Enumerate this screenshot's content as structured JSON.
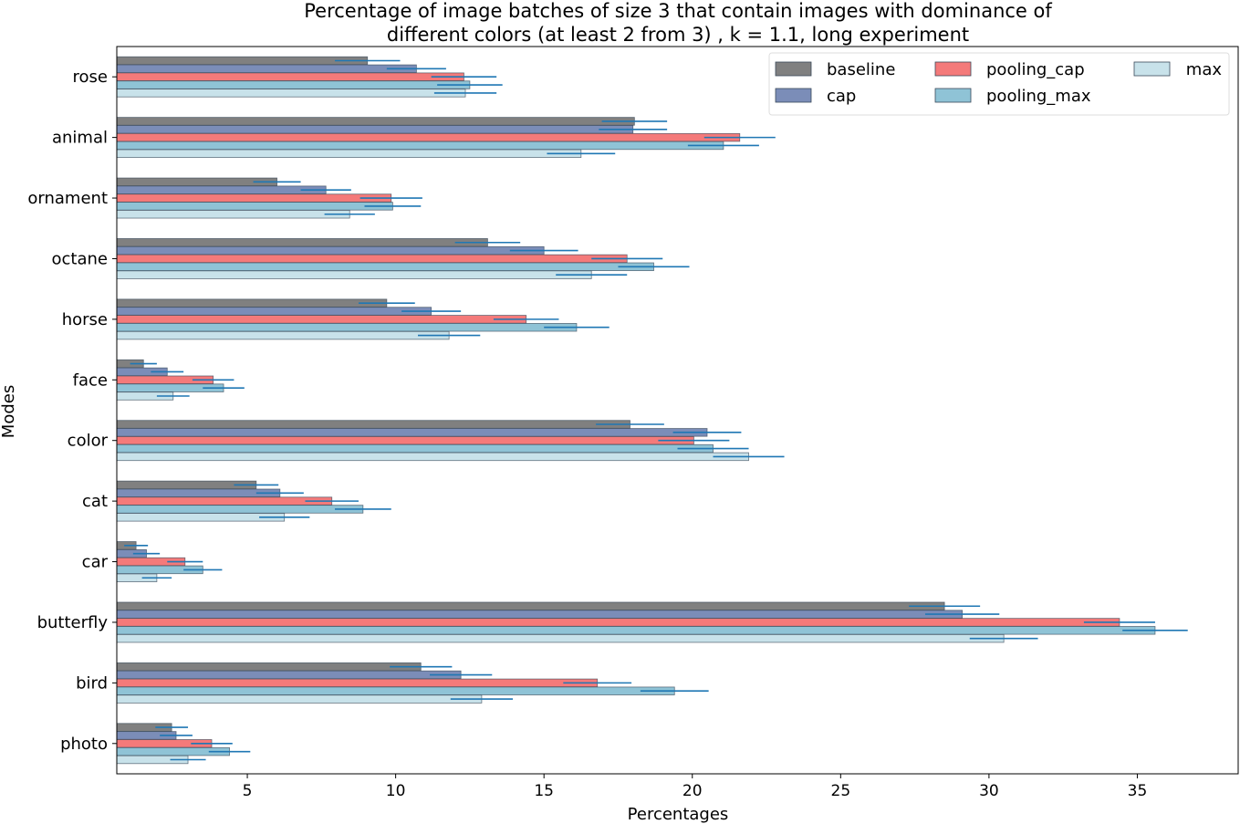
{
  "chart_data": {
    "type": "bar",
    "orientation": "horizontal",
    "title_line1": "Percentage of image batches of size 3 that contain images with dominance of",
    "title_line2": "different colors (at least 2 from 3) , k = 1.1, long experiment",
    "xlabel": "Percentages",
    "ylabel": "Modes",
    "xlim": [
      0.6,
      38.4
    ],
    "xticks": [
      5,
      10,
      15,
      20,
      25,
      30,
      35
    ],
    "categories": [
      "rose",
      "animal",
      "ornament",
      "octane",
      "horse",
      "face",
      "color",
      "cat",
      "car",
      "butterfly",
      "bird",
      "photo"
    ],
    "series": [
      {
        "name": "baseline",
        "color": "#808080",
        "values": [
          9.05,
          18.05,
          6.0,
          13.1,
          9.7,
          1.5,
          17.9,
          5.3,
          1.25,
          28.5,
          10.85,
          2.45
        ],
        "errors": [
          1.1,
          1.1,
          0.8,
          1.1,
          0.95,
          0.45,
          1.15,
          0.75,
          0.4,
          1.2,
          1.05,
          0.55
        ]
      },
      {
        "name": "cap",
        "color": "#7b8db8",
        "values": [
          10.7,
          18.0,
          7.65,
          15.0,
          11.2,
          2.3,
          20.5,
          6.1,
          1.6,
          29.1,
          12.2,
          2.6
        ],
        "errors": [
          1.0,
          1.15,
          0.85,
          1.15,
          1.0,
          0.55,
          1.15,
          0.8,
          0.45,
          1.25,
          1.05,
          0.55
        ]
      },
      {
        "name": "pooling_cap",
        "color": "#f47a7a",
        "values": [
          12.3,
          21.6,
          9.85,
          17.8,
          14.4,
          3.85,
          20.05,
          7.85,
          2.9,
          34.4,
          16.8,
          3.8
        ],
        "errors": [
          1.1,
          1.2,
          1.05,
          1.2,
          1.1,
          0.7,
          1.2,
          0.9,
          0.6,
          1.2,
          1.15,
          0.7
        ]
      },
      {
        "name": "pooling_max",
        "color": "#8fc3d6",
        "values": [
          12.5,
          21.05,
          9.9,
          18.7,
          16.1,
          4.2,
          20.7,
          8.9,
          3.5,
          35.6,
          19.4,
          4.4
        ],
        "errors": [
          1.1,
          1.2,
          0.95,
          1.2,
          1.1,
          0.7,
          1.2,
          0.95,
          0.65,
          1.1,
          1.15,
          0.7
        ]
      },
      {
        "name": "max",
        "color": "#c8e2ea",
        "values": [
          12.35,
          16.25,
          8.45,
          16.6,
          11.8,
          2.5,
          21.9,
          6.25,
          1.95,
          30.5,
          12.9,
          3.0
        ],
        "errors": [
          1.05,
          1.15,
          0.85,
          1.2,
          1.05,
          0.55,
          1.2,
          0.85,
          0.5,
          1.15,
          1.05,
          0.6
        ]
      }
    ],
    "legend_placement": "top-right",
    "legend_columns": 3,
    "error_bar_color": "#1f77b4",
    "grid": false
  }
}
